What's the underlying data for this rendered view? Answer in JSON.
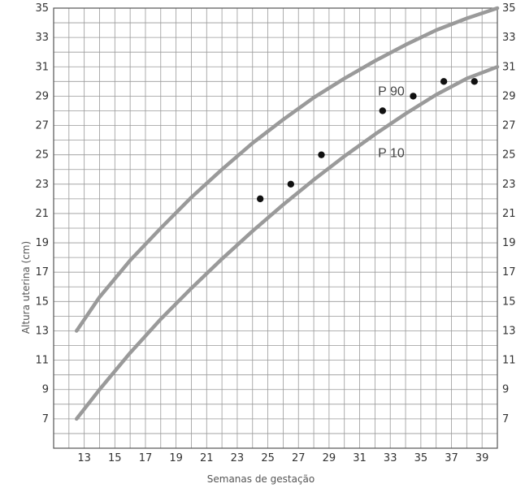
{
  "chart_data": {
    "type": "line",
    "xlabel": "Semanas de gestação",
    "ylabel": "Altura uterina (cm)",
    "xlim": [
      11,
      40
    ],
    "ylim": [
      5,
      35
    ],
    "x_ticks": [
      13,
      15,
      17,
      19,
      21,
      23,
      25,
      27,
      29,
      31,
      33,
      35,
      37,
      39
    ],
    "y_ticks": [
      7,
      9,
      11,
      13,
      15,
      17,
      19,
      21,
      23,
      25,
      27,
      29,
      31,
      33,
      35
    ],
    "grid": true,
    "series": [
      {
        "name": "P 90",
        "type": "line",
        "x": [
          12.5,
          14,
          16,
          18,
          20,
          22,
          24,
          26,
          28,
          30,
          32,
          34,
          36,
          38,
          40
        ],
        "y": [
          13,
          15.3,
          17.8,
          20.0,
          22.1,
          24.0,
          25.8,
          27.4,
          28.9,
          30.2,
          31.4,
          32.5,
          33.5,
          34.3,
          35
        ]
      },
      {
        "name": "P 10",
        "type": "line",
        "x": [
          12.5,
          14,
          16,
          18,
          20,
          22,
          24,
          26,
          28,
          30,
          32,
          34,
          36,
          38,
          40
        ],
        "y": [
          7,
          9.0,
          11.5,
          13.8,
          15.9,
          17.9,
          19.8,
          21.6,
          23.3,
          24.9,
          26.4,
          27.8,
          29.1,
          30.2,
          31
        ]
      },
      {
        "name": "",
        "type": "scatter",
        "x": [
          24.5,
          26.5,
          28.5,
          32.5,
          34.5,
          36.5,
          38.5
        ],
        "y": [
          22,
          23,
          25,
          28,
          29,
          30,
          30
        ]
      }
    ],
    "colors": {
      "curve": "#9a9a9a",
      "grid": "#999999",
      "points": "#111111"
    }
  }
}
